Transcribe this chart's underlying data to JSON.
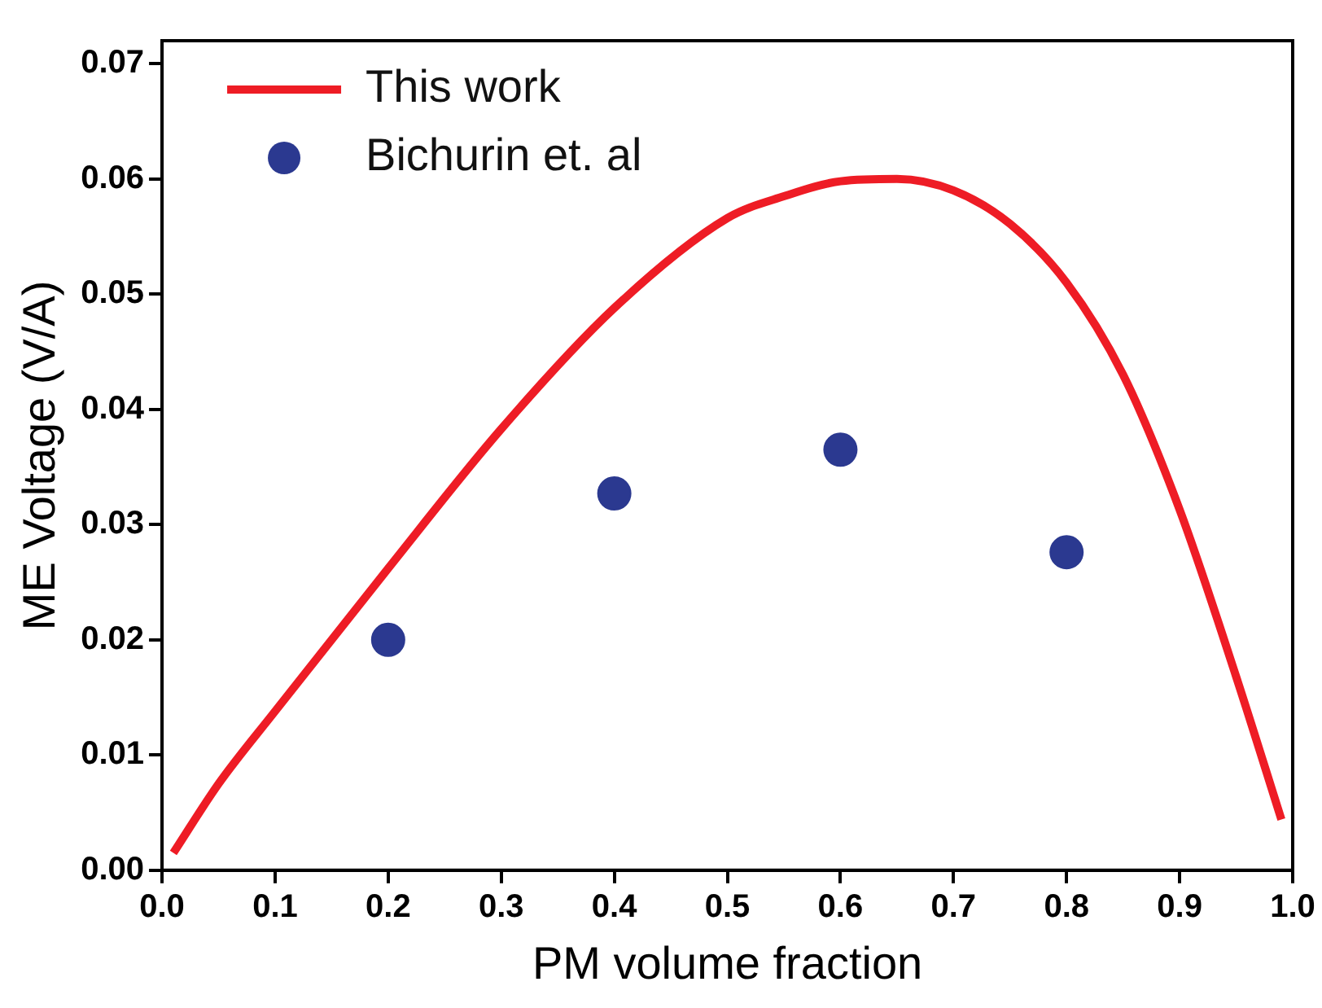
{
  "chart_data": {
    "type": "line",
    "xlabel": "PM volume fraction",
    "ylabel": "ME Voltage (V/A)",
    "xlim": [
      0,
      1
    ],
    "ylim": [
      0,
      0.072
    ],
    "xticks": [
      {
        "value": 0,
        "label": "0.0"
      },
      {
        "value": 0.1,
        "label": "0.1"
      },
      {
        "value": 0.2,
        "label": "0.2"
      },
      {
        "value": 0.3,
        "label": "0.3"
      },
      {
        "value": 0.4,
        "label": "0.4"
      },
      {
        "value": 0.5,
        "label": "0.5"
      },
      {
        "value": 0.6,
        "label": "0.6"
      },
      {
        "value": 0.7,
        "label": "0.7"
      },
      {
        "value": 0.8,
        "label": "0.8"
      },
      {
        "value": 0.9,
        "label": "0.9"
      },
      {
        "value": 1,
        "label": "1.0"
      }
    ],
    "yticks": [
      {
        "value": 0,
        "label": "0.00"
      },
      {
        "value": 0.01,
        "label": "0.01"
      },
      {
        "value": 0.02,
        "label": "0.02"
      },
      {
        "value": 0.03,
        "label": "0.03"
      },
      {
        "value": 0.04,
        "label": "0.04"
      },
      {
        "value": 0.05,
        "label": "0.05"
      },
      {
        "value": 0.06,
        "label": "0.06"
      },
      {
        "value": 0.07,
        "label": "0.07"
      }
    ],
    "grid": false,
    "legend": "top left",
    "series": [
      {
        "name": "This work",
        "type": "line",
        "color": "#ee1c25",
        "marker": "none",
        "line_style": "solid",
        "x": [
          0.01,
          0.05,
          0.1,
          0.2,
          0.3,
          0.4,
          0.5,
          0.55,
          0.6,
          0.65,
          0.7,
          0.75,
          0.8,
          0.85,
          0.9,
          0.95,
          0.99
        ],
        "values": [
          0.0015,
          0.0075,
          0.0138,
          0.0262,
          0.0383,
          0.0488,
          0.0566,
          0.0585,
          0.0598,
          0.06,
          0.059,
          0.0561,
          0.051,
          0.043,
          0.0313,
          0.0168,
          0.0044
        ]
      },
      {
        "name": "Bichurin et. al",
        "type": "scatter",
        "color": "#2b3990",
        "marker": "circle",
        "x": [
          0.2,
          0.4,
          0.6,
          0.8
        ],
        "values": [
          0.02,
          0.0327,
          0.0365,
          0.0276
        ]
      }
    ]
  }
}
